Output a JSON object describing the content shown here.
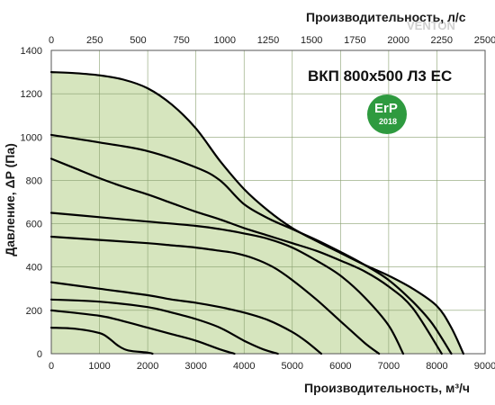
{
  "chart_data": {
    "type": "line",
    "title": "ВКП 800х500 Л3 ЕС",
    "xlabel": "Производительность, м³/ч",
    "x2label": "Производительность, л/с",
    "ylabel": "Давление, ΔP (Па)",
    "xlim": [
      0,
      9000
    ],
    "x2lim": [
      0,
      2500
    ],
    "ylim": [
      0,
      1400
    ],
    "x_ticks": [
      0,
      1000,
      2000,
      3000,
      4000,
      5000,
      6000,
      7000,
      8000,
      9000
    ],
    "x2_ticks": [
      0,
      250,
      500,
      750,
      1000,
      1250,
      1500,
      1750,
      2000,
      2250,
      2500
    ],
    "y_ticks": [
      0,
      200,
      400,
      600,
      800,
      1000,
      1200,
      1400
    ],
    "grid": true,
    "area_color": "#d6e5be",
    "grid_color": "#8aa070",
    "line_color": "#000000",
    "badge": {
      "text": "ErP",
      "year": "2018",
      "color": "#2e9a3f"
    },
    "watermark": "VENTON",
    "series": [
      {
        "x": [
          0,
          500,
          1000,
          1500,
          2000,
          2500,
          3000,
          3500,
          4000,
          4500,
          5000,
          5500,
          6000,
          6500,
          7000,
          7500,
          8000,
          8300,
          8550
        ],
        "y": [
          1300,
          1295,
          1285,
          1265,
          1225,
          1150,
          1040,
          890,
          760,
          660,
          580,
          520,
          465,
          410,
          360,
          300,
          220,
          120,
          0
        ]
      },
      {
        "x": [
          0,
          1000,
          2000,
          3000,
          3500,
          4000,
          4500,
          5000,
          5500,
          6000,
          6500,
          7000,
          7500,
          7900,
          8300
        ],
        "y": [
          1010,
          975,
          935,
          860,
          800,
          690,
          625,
          575,
          525,
          470,
          410,
          340,
          240,
          140,
          0
        ]
      },
      {
        "x": [
          0,
          500,
          1000,
          1500,
          2000,
          2500,
          3000,
          3500,
          4000,
          4500,
          5000,
          5500,
          6000,
          6500,
          7000,
          7500,
          8100
        ],
        "y": [
          900,
          855,
          810,
          770,
          735,
          695,
          655,
          620,
          580,
          545,
          510,
          475,
          430,
          380,
          310,
          210,
          0
        ]
      },
      {
        "x": [
          0,
          1000,
          2000,
          3000,
          3500,
          4000,
          4500,
          5000,
          5500,
          6000,
          6500,
          7000,
          7300
        ],
        "y": [
          650,
          630,
          610,
          590,
          575,
          555,
          530,
          490,
          430,
          360,
          260,
          130,
          0
        ]
      },
      {
        "x": [
          0,
          1000,
          2000,
          2500,
          3000,
          3500,
          3800,
          4200,
          4600,
          5000,
          5500,
          6000,
          6500,
          6800
        ],
        "y": [
          540,
          525,
          510,
          500,
          490,
          475,
          465,
          440,
          400,
          340,
          250,
          150,
          50,
          0
        ]
      },
      {
        "x": [
          0,
          1000,
          2000,
          2500,
          3000,
          3500,
          4000,
          4500,
          5000,
          5300,
          5600
        ],
        "y": [
          330,
          300,
          270,
          250,
          235,
          215,
          190,
          155,
          100,
          55,
          0
        ]
      },
      {
        "x": [
          0,
          1000,
          2000,
          2500,
          3000,
          3500,
          4000,
          4400,
          4700
        ],
        "y": [
          250,
          240,
          215,
          190,
          160,
          120,
          60,
          20,
          0
        ]
      },
      {
        "x": [
          0,
          1000,
          1500,
          2000,
          2500,
          3000,
          3500,
          3800
        ],
        "y": [
          200,
          175,
          150,
          120,
          90,
          60,
          20,
          0
        ]
      },
      {
        "x": [
          0,
          500,
          1000,
          1200,
          1400,
          1600,
          2000,
          2100
        ],
        "y": [
          120,
          115,
          95,
          70,
          35,
          15,
          5,
          0
        ]
      }
    ]
  }
}
